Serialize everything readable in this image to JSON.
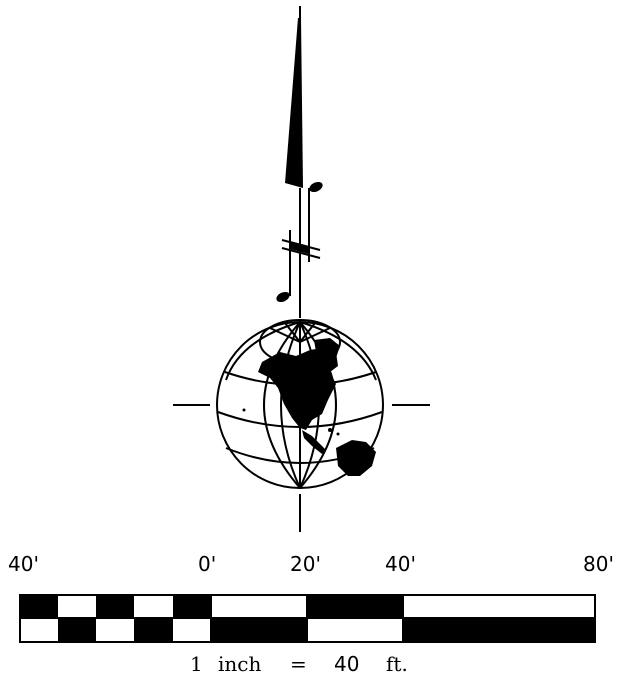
{
  "colors": {
    "ink": "#000000",
    "paper": "#ffffff"
  },
  "north_arrow": {
    "icon": "north-arrow-icon",
    "globe_icon": "globe-icon"
  },
  "scale_bar": {
    "ticks": [
      {
        "label": "40'",
        "feet": -40
      },
      {
        "label": "0'",
        "feet": 0
      },
      {
        "label": "20'",
        "feet": 20
      },
      {
        "label": "40'",
        "feet": 40
      },
      {
        "label": "80'",
        "feet": 80
      }
    ],
    "caption": {
      "number": "1",
      "unit": "inch",
      "equals": "=",
      "value": "40",
      "value_unit": "ft."
    }
  }
}
